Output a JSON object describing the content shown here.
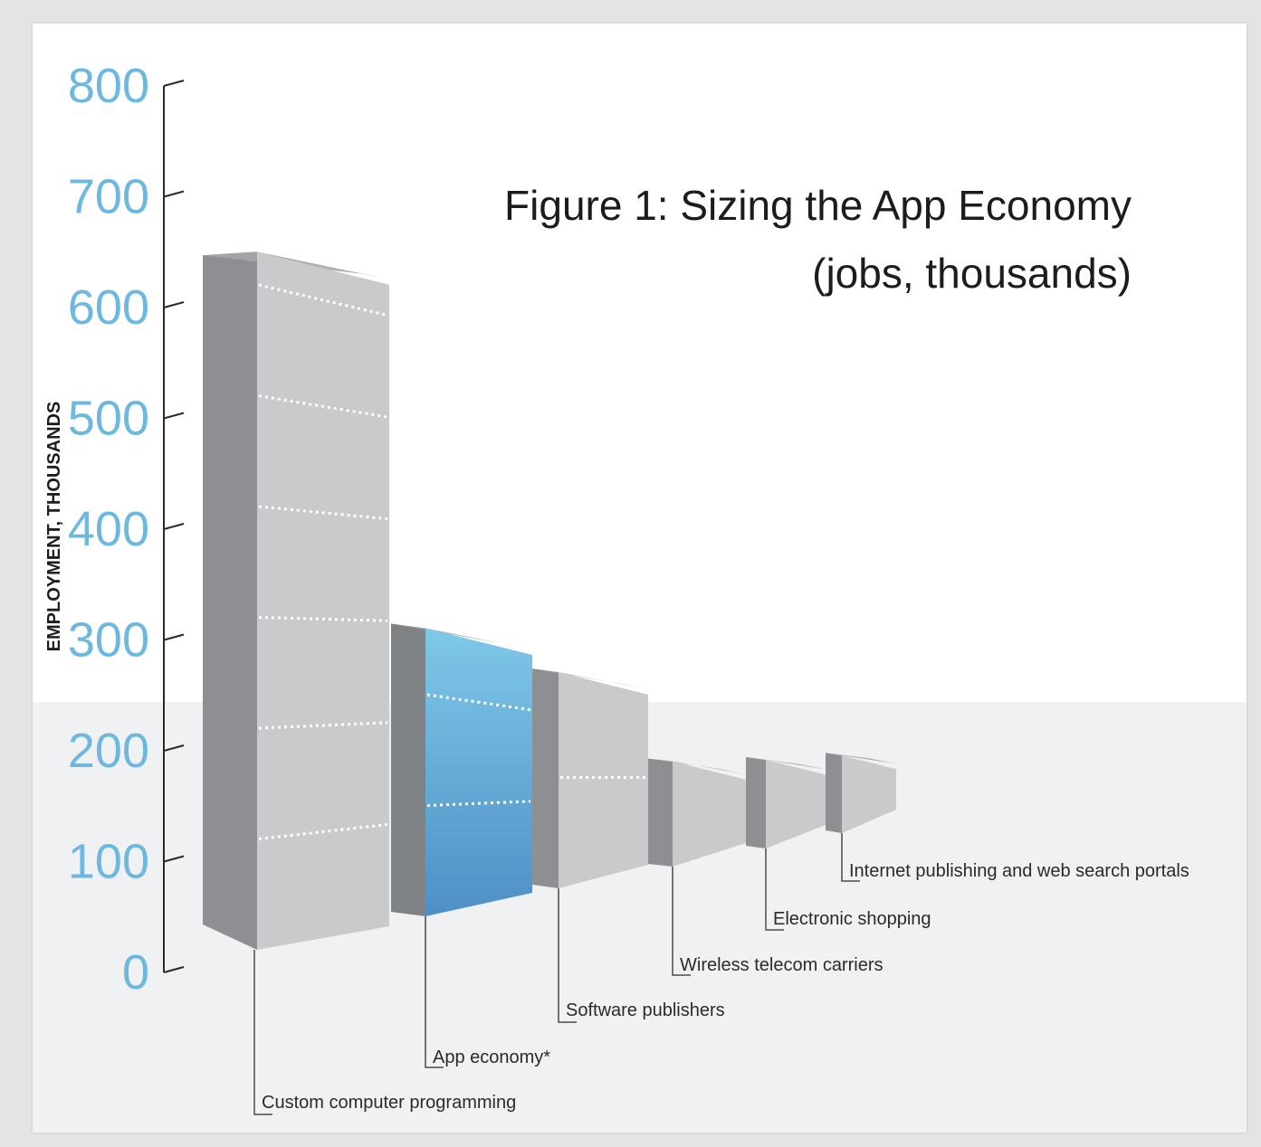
{
  "chart_data": {
    "type": "bar",
    "title": "Figure 1: Sizing the App Economy",
    "subtitle": "(jobs, thousands)",
    "ylabel": "EMPLOYMENT, THOUSANDS",
    "xlabel": "",
    "ylim": [
      0,
      800
    ],
    "yticks": [
      "0",
      "100",
      "200",
      "300",
      "400",
      "500",
      "600",
      "700",
      "800"
    ],
    "categories": [
      "Custom computer programming",
      "App economy*",
      "Software publishers",
      "Wireless telecom carriers",
      "Electronic shopping",
      "Internet publishing and web search portals"
    ],
    "values": [
      630,
      260,
      195,
      95,
      80,
      70
    ],
    "highlight_index": 1,
    "colors": {
      "bar_front": "#c9cacc",
      "bar_side": "#8e8f92",
      "bar_top": "#a5a6a9",
      "highlight_light": "#7ec8e8",
      "highlight_dark": "#4f8fc6",
      "highlight_side": "#7f8386",
      "axis_tick_text": "#6cb8df",
      "floor": "#f0f1f3"
    }
  }
}
